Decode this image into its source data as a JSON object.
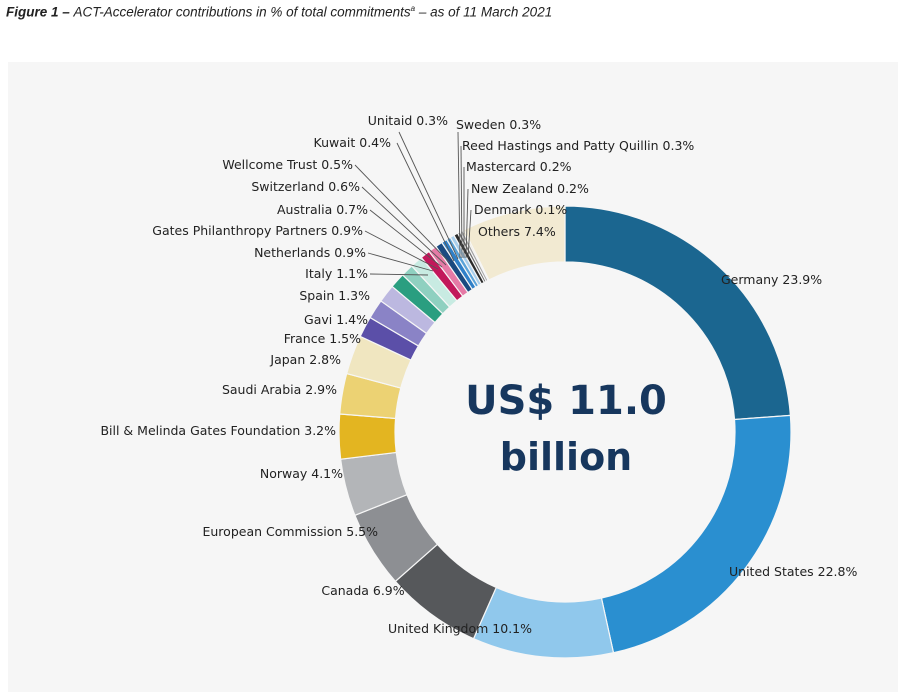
{
  "title": {
    "prefix": "Figure 1 – ",
    "text": "ACT-Accelerator contributions in % of total commitments",
    "marker": "a",
    "suffix": " – as of 11 March 2021"
  },
  "chart_data": {
    "type": "pie",
    "subtype": "donut",
    "center_text": [
      "US$ 11.0",
      "billion"
    ],
    "unit": "%",
    "slices": [
      {
        "label": "Germany 23.9%",
        "name": "Germany",
        "value": 23.9,
        "color": "#1b6690"
      },
      {
        "label": "United States 22.8%",
        "name": "United States",
        "value": 22.8,
        "color": "#2a8fd0"
      },
      {
        "label": "United Kingdom 10.1%",
        "name": "United Kingdom",
        "value": 10.1,
        "color": "#90c8ec"
      },
      {
        "label": "Canada 6.9%",
        "name": "Canada",
        "value": 6.9,
        "color": "#56585b"
      },
      {
        "label": "European Commission 5.5%",
        "name": "European Commission",
        "value": 5.5,
        "color": "#8d8f93"
      },
      {
        "label": "Norway 4.1%",
        "name": "Norway",
        "value": 4.1,
        "color": "#b3b5b8"
      },
      {
        "label": "Bill & Melinda Gates Foundation 3.2%",
        "name": "Bill & Melinda Gates Foundation",
        "value": 3.2,
        "color": "#e3b521"
      },
      {
        "label": "Saudi Arabia 2.9%",
        "name": "Saudi Arabia",
        "value": 2.9,
        "color": "#ecd273"
      },
      {
        "label": "Japan 2.8%",
        "name": "Japan",
        "value": 2.8,
        "color": "#f0e6c0"
      },
      {
        "label": "France 1.5%",
        "name": "France",
        "value": 1.5,
        "color": "#5b4fa8"
      },
      {
        "label": "Gavi 1.4%",
        "name": "Gavi",
        "value": 1.4,
        "color": "#8a83c6"
      },
      {
        "label": "Spain 1.3%",
        "name": "Spain",
        "value": 1.3,
        "color": "#bcb8e0"
      },
      {
        "label": "Italy 1.1%",
        "name": "Italy",
        "value": 1.1,
        "color": "#2a9e80"
      },
      {
        "label": "Netherlands 0.9%",
        "name": "Netherlands",
        "value": 0.9,
        "color": "#8fd0c0"
      },
      {
        "label": "Gates Philanthropy Partners 0.9%",
        "name": "Gates Philanthropy Partners",
        "value": 0.9,
        "color": "#c8ebe2"
      },
      {
        "label": "Australia 0.7%",
        "name": "Australia",
        "value": 0.7,
        "color": "#c2185b"
      },
      {
        "label": "Switzerland 0.6%",
        "name": "Switzerland",
        "value": 0.6,
        "color": "#e57aa6"
      },
      {
        "label": "Wellcome Trust 0.5%",
        "name": "Wellcome Trust",
        "value": 0.5,
        "color": "#1a4a80"
      },
      {
        "label": "Kuwait 0.4%",
        "name": "Kuwait",
        "value": 0.4,
        "color": "#2f80c8"
      },
      {
        "label": "Unitaid 0.3%",
        "name": "Unitaid",
        "value": 0.3,
        "color": "#5aa3d9"
      },
      {
        "label": "Sweden 0.3%",
        "name": "Sweden",
        "value": 0.3,
        "color": "#a9cfec"
      },
      {
        "label": "Reed Hastings and Patty Quillin 0.3%",
        "name": "Reed Hastings and Patty Quillin",
        "value": 0.3,
        "color": "#2b2b2b"
      },
      {
        "label": "Mastercard 0.2%",
        "name": "Mastercard",
        "value": 0.2,
        "color": "#6f6f6f"
      },
      {
        "label": "New Zealand 0.2%",
        "name": "New Zealand",
        "value": 0.2,
        "color": "#a5a5a5"
      },
      {
        "label": "Denmark 0.1%",
        "name": "Denmark",
        "value": 0.1,
        "color": "#d6a81a"
      },
      {
        "label": "Others 7.4%",
        "name": "Others",
        "value": 7.4,
        "color": "#f2ead2"
      }
    ]
  }
}
